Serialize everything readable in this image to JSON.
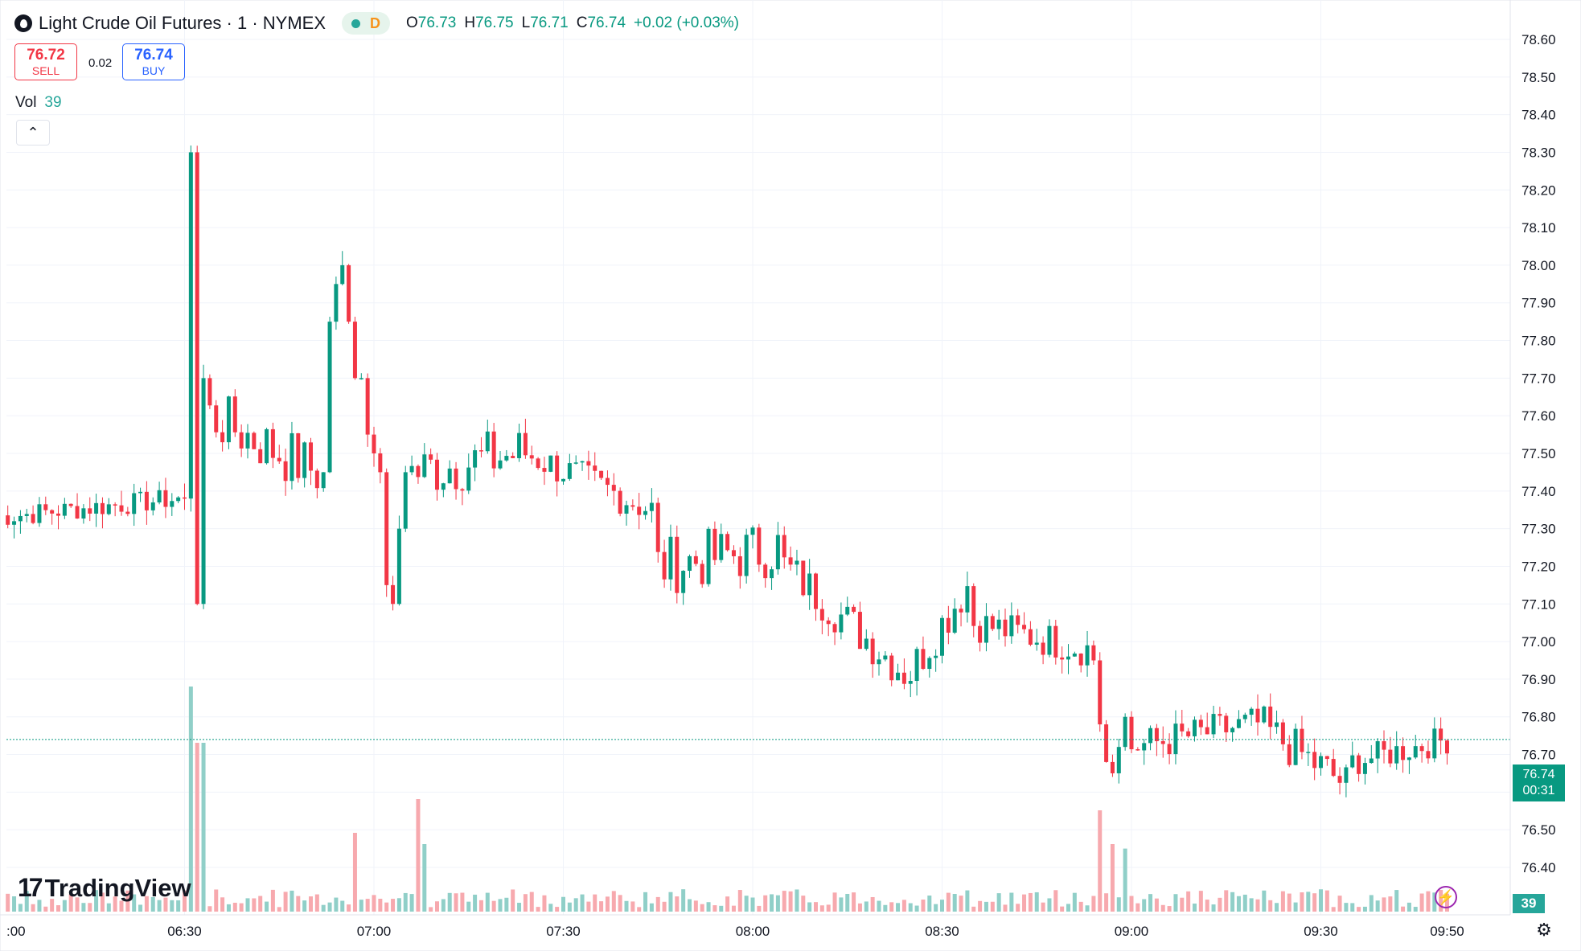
{
  "header": {
    "title": "Light Crude Oil Futures · 1 · NYMEX",
    "status_letter": "D",
    "o_label": "O",
    "o_value": "76.73",
    "h_label": "H",
    "h_value": "76.75",
    "l_label": "L",
    "l_value": "76.71",
    "c_label": "C",
    "c_value": "76.74",
    "change": "+0.02 (+0.03%)"
  },
  "trade": {
    "sell_price": "76.72",
    "sell_label": "SELL",
    "spread": "0.02",
    "buy_price": "76.74",
    "buy_label": "BUY"
  },
  "volume_indicator": {
    "label": "Vol",
    "value": "39"
  },
  "branding": {
    "logo_text": "TradingView"
  },
  "price_scale": {
    "ticks": [
      "78.60",
      "78.50",
      "78.40",
      "78.30",
      "78.20",
      "78.10",
      "78.00",
      "77.90",
      "77.80",
      "77.70",
      "77.60",
      "77.50",
      "77.40",
      "77.30",
      "77.20",
      "77.10",
      "77.00",
      "76.90",
      "76.80",
      "76.70",
      "76.60",
      "76.50",
      "76.40"
    ],
    "last_price": "76.74",
    "countdown": "00:31",
    "volume_tag": "39"
  },
  "time_scale": {
    "ticks": [
      ":00",
      "06:30",
      "07:00",
      "07:30",
      "08:00",
      "08:30",
      "09:00",
      "09:30",
      "09:50"
    ]
  },
  "colors": {
    "up": "#089981",
    "down": "#f23645",
    "vol_up": "#90cfc8",
    "vol_down": "#f7a9ae",
    "grid": "#f0f3fa"
  },
  "chart_data": {
    "type": "candlestick",
    "symbol": "Light Crude Oil Futures",
    "interval_minutes": 1,
    "ylim": [
      76.4,
      78.6
    ],
    "grid": true,
    "segments": [
      {
        "from": "06:00",
        "to": "06:30",
        "level_start": 77.33,
        "level_end": 77.38,
        "spread": 0.03,
        "candles": 32
      },
      {
        "from": "06:30",
        "to": "06:34",
        "points": [
          77.38,
          78.3,
          77.1,
          77.7,
          77.65
        ]
      },
      {
        "from": "06:34",
        "to": "06:52",
        "level_start": 77.6,
        "level_end": 77.45,
        "spread": 0.08,
        "candles": 18
      },
      {
        "from": "06:52",
        "to": "06:58",
        "points": [
          77.45,
          77.85,
          77.95,
          78.0,
          77.85,
          77.7
        ]
      },
      {
        "from": "06:58",
        "to": "07:06",
        "points": [
          77.7,
          77.55,
          77.5,
          77.45,
          77.15,
          77.1,
          77.3,
          77.45
        ]
      },
      {
        "from": "07:06",
        "to": "07:24",
        "level_start": 77.45,
        "level_end": 77.5,
        "spread": 0.08,
        "candles": 18
      },
      {
        "from": "07:24",
        "to": "07:45",
        "level_start": 77.5,
        "level_end": 77.35,
        "spread": 0.05,
        "candles": 21
      },
      {
        "from": "07:45",
        "to": "08:05",
        "level_start": 77.2,
        "level_end": 77.25,
        "spread": 0.08,
        "candles": 20
      },
      {
        "from": "08:05",
        "to": "08:25",
        "level_start": 77.2,
        "level_end": 76.92,
        "spread": 0.06,
        "candles": 20
      },
      {
        "from": "08:25",
        "to": "08:35",
        "level_start": 76.92,
        "level_end": 77.15,
        "spread": 0.06,
        "candles": 10
      },
      {
        "from": "08:35",
        "to": "08:54",
        "level_start": 77.05,
        "level_end": 76.98,
        "spread": 0.05,
        "candles": 19
      },
      {
        "from": "08:54",
        "to": "09:00",
        "points": [
          76.95,
          76.78,
          76.68,
          76.65,
          76.72,
          76.8
        ]
      },
      {
        "from": "09:00",
        "to": "09:20",
        "level_start": 76.72,
        "level_end": 76.78,
        "spread": 0.05,
        "candles": 20
      },
      {
        "from": "09:20",
        "to": "09:35",
        "level_start": 76.78,
        "level_end": 76.62,
        "spread": 0.06,
        "candles": 15
      },
      {
        "from": "09:35",
        "to": "09:51",
        "level_start": 76.68,
        "level_end": 76.74,
        "spread": 0.04,
        "candles": 16
      }
    ],
    "volume_spikes": [
      {
        "time": "06:31",
        "volume": 100
      },
      {
        "time": "06:32",
        "volume": 75
      },
      {
        "time": "06:33",
        "volume": 75
      },
      {
        "time": "06:57",
        "volume": 35
      },
      {
        "time": "07:07",
        "volume": 50
      },
      {
        "time": "07:08",
        "volume": 30
      },
      {
        "time": "08:55",
        "volume": 45
      },
      {
        "time": "08:57",
        "volume": 30
      },
      {
        "time": "08:59",
        "volume": 28
      }
    ],
    "last": {
      "open": 76.73,
      "high": 76.75,
      "low": 76.71,
      "close": 76.74,
      "change": 0.02,
      "change_pct": 0.03,
      "volume": 39
    }
  }
}
